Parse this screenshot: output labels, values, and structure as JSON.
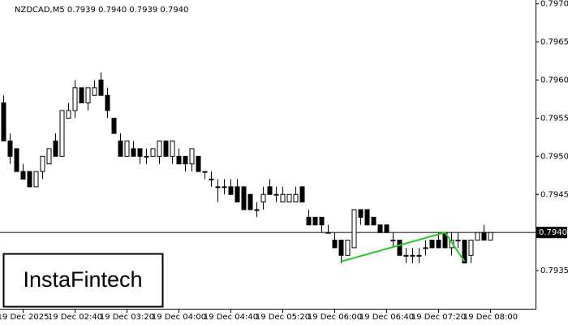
{
  "chart_data": {
    "type": "candlestick",
    "header": "NZDCAD,M5  0.7939 0.7940 0.7939 0.7940",
    "logo": "InstaFintech",
    "categories": [
      null,
      null,
      null,
      "19 Dec 2025",
      null,
      null,
      null,
      null,
      null,
      null,
      null,
      "19 Dec 02:40",
      null,
      null,
      null,
      null,
      null,
      null,
      null,
      "19 Dec 03:20",
      null,
      null,
      null,
      null,
      null,
      null,
      null,
      "19 Dec 04:00",
      null,
      null,
      null,
      null,
      null,
      null,
      null,
      "19 Dec 04:40",
      null,
      null,
      null,
      null,
      null,
      null,
      null,
      "19 Dec 05:20",
      null,
      null,
      null,
      null,
      null,
      null,
      null,
      "19 Dec 06:00",
      null,
      null,
      null,
      null,
      null,
      null,
      null,
      "19 Dec 06:40",
      null,
      null,
      null,
      null,
      null,
      null,
      null,
      "19 Dec 07:20",
      null,
      null,
      null,
      null,
      null,
      null,
      null,
      "19 Dec 08:00"
    ],
    "open": [
      0.7957,
      0.7952,
      0.7951,
      0.7948,
      0.7948,
      0.7946,
      0.7948,
      0.7949,
      0.7952,
      0.795,
      0.7955,
      0.7956,
      0.7959,
      0.7957,
      0.7958,
      0.796,
      0.7958,
      0.7955,
      0.7952,
      0.795,
      0.7951,
      0.7951,
      0.795,
      0.795,
      0.795,
      0.7952,
      0.795,
      0.795,
      0.795,
      0.7949,
      0.795,
      0.7948,
      0.7947,
      0.7946,
      0.7946,
      0.7946,
      0.7946,
      0.7946,
      0.7945,
      0.7943,
      0.7944,
      0.7946,
      0.7945,
      0.7944,
      0.7944,
      0.7944,
      0.7946,
      0.7942,
      0.7942,
      0.7942,
      0.794,
      0.7939,
      0.7939,
      0.7937,
      0.7938,
      0.7943,
      0.7943,
      0.7942,
      0.7941,
      0.7941,
      0.7939,
      0.7939,
      0.7937,
      0.7937,
      0.7937,
      0.7938,
      0.7939,
      0.7939,
      0.794,
      0.7938,
      0.7939,
      0.7939,
      0.7937,
      0.7939,
      0.794,
      0.7939
    ],
    "high": [
      0.7958,
      0.7953,
      0.7951,
      0.7949,
      0.7948,
      0.7948,
      0.795,
      0.7951,
      0.7953,
      0.7956,
      0.7957,
      0.796,
      0.7959,
      0.7959,
      0.796,
      0.7961,
      0.7959,
      0.7955,
      0.7953,
      0.7952,
      0.7952,
      0.7951,
      0.7951,
      0.7951,
      0.7952,
      0.7952,
      0.7952,
      0.7951,
      0.795,
      0.7951,
      0.795,
      0.7948,
      0.7948,
      0.7947,
      0.7947,
      0.7947,
      0.7947,
      0.7946,
      0.7945,
      0.7944,
      0.7946,
      0.7947,
      0.7946,
      0.7946,
      0.7945,
      0.7946,
      0.7946,
      0.7943,
      0.7942,
      0.7942,
      0.7941,
      0.794,
      0.7939,
      0.7939,
      0.7943,
      0.7943,
      0.7943,
      0.7942,
      0.7941,
      0.7941,
      0.794,
      0.7939,
      0.7938,
      0.7938,
      0.7938,
      0.7939,
      0.7939,
      0.794,
      0.794,
      0.794,
      0.794,
      0.7939,
      0.7939,
      0.794,
      0.7941,
      0.794
    ],
    "low": [
      0.7952,
      0.7949,
      0.7948,
      0.7947,
      0.7946,
      0.7946,
      0.7947,
      0.7949,
      0.795,
      0.795,
      0.7955,
      0.7955,
      0.7957,
      0.7956,
      0.7958,
      0.7958,
      0.7955,
      0.7953,
      0.795,
      0.795,
      0.795,
      0.7949,
      0.7949,
      0.795,
      0.7949,
      0.795,
      0.7949,
      0.7949,
      0.7948,
      0.7948,
      0.7948,
      0.7947,
      0.7946,
      0.7944,
      0.7945,
      0.7945,
      0.7944,
      0.7943,
      0.7943,
      0.7942,
      0.7943,
      0.7945,
      0.7944,
      0.7944,
      0.7944,
      0.7944,
      0.7944,
      0.7941,
      0.7941,
      0.794,
      0.794,
      0.7938,
      0.7936,
      0.7937,
      0.7938,
      0.7941,
      0.7941,
      0.7941,
      0.794,
      0.794,
      0.7938,
      0.7937,
      0.7936,
      0.7936,
      0.7936,
      0.7937,
      0.7938,
      0.7938,
      0.7938,
      0.7937,
      0.7938,
      0.7936,
      0.7936,
      0.7939,
      0.7939,
      0.7939
    ],
    "close": [
      0.7952,
      0.795,
      0.7948,
      0.7947,
      0.7946,
      0.7948,
      0.795,
      0.7951,
      0.795,
      0.7956,
      0.7956,
      0.7959,
      0.7957,
      0.7959,
      0.7959,
      0.7958,
      0.7956,
      0.7953,
      0.795,
      0.7952,
      0.795,
      0.795,
      0.795,
      0.7951,
      0.7952,
      0.795,
      0.7952,
      0.7949,
      0.7949,
      0.7951,
      0.7948,
      0.7948,
      0.7947,
      0.7946,
      0.7946,
      0.7945,
      0.7944,
      0.7943,
      0.7943,
      0.7943,
      0.7945,
      0.7945,
      0.7945,
      0.7945,
      0.7945,
      0.7945,
      0.7944,
      0.7941,
      0.7941,
      0.7941,
      0.794,
      0.7938,
      0.7937,
      0.7939,
      0.7943,
      0.7942,
      0.7941,
      0.7941,
      0.794,
      0.794,
      0.7939,
      0.7937,
      0.7937,
      0.7937,
      0.7937,
      0.7938,
      0.7938,
      0.7938,
      0.7938,
      0.7939,
      0.7939,
      0.7936,
      0.7939,
      0.794,
      0.7939,
      0.794
    ],
    "ylim": [
      0.793,
      0.79705
    ],
    "yticks": [
      0.7935,
      0.7945,
      {
        "value": 0.795,
        "label": "0.7950"
      },
      0.7955,
      {
        "value": 0.796,
        "label": "0.7960"
      },
      0.7965,
      {
        "value": 0.797,
        "label": "0.7970"
      }
    ],
    "last_price": {
      "value": 0.794,
      "label": "0.7940"
    },
    "pattern": {
      "color": "#22cc22",
      "x": [
        52,
        68,
        71
      ],
      "y": [
        0.79362,
        0.794,
        0.79362
      ]
    }
  }
}
